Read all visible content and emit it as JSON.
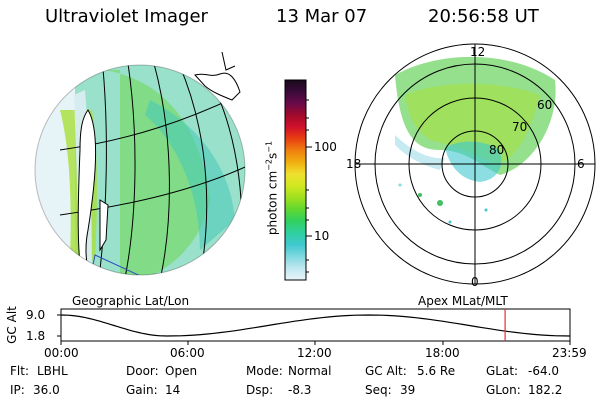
{
  "header": {
    "title": "Ultraviolet Imager",
    "date": "13 Mar 07",
    "time": "20:56:58 UT"
  },
  "colorbar": {
    "unit_label": "photon cm",
    "unit_sup1": "−2",
    "unit_mid": "s",
    "unit_sup2": "−1",
    "ticks": [
      "100",
      "10"
    ],
    "colors": [
      "#1a0a1a",
      "#3a0a3a",
      "#6a0a4a",
      "#a00a2a",
      "#d0102a",
      "#e84010",
      "#f08010",
      "#f0b010",
      "#f0e030",
      "#d0e820",
      "#a0e020",
      "#60d830",
      "#30d060",
      "#30d0a0",
      "#40c8d0",
      "#80d8e0",
      "#c0e8f0",
      "#e8f4f8"
    ],
    "colors_label": "ramp-top-to-bottom"
  },
  "left_map": {
    "caption": "Geographic Lat/Lon"
  },
  "right_map": {
    "caption": "Apex MLat/MLT",
    "mlt_labels": {
      "top": "12",
      "left": "18",
      "right": "6",
      "bottom": "0"
    },
    "lat_labels": [
      "60",
      "70",
      "80"
    ]
  },
  "timeline": {
    "axis_label": "GC Alt",
    "y_ticks": [
      "9.0",
      "1.8"
    ],
    "x_ticks": [
      "00:00",
      "06:00",
      "12:00",
      "18:00",
      "23:59"
    ],
    "marker_time": "20:56",
    "marker_color": "#e03030",
    "alt_curve_hours": [
      0,
      5.0,
      14.5,
      23.99
    ],
    "alt_curve_values": [
      9.0,
      1.8,
      9.0,
      1.8
    ]
  },
  "status": {
    "filter_label": "Flt:",
    "filter_value": "LBHL",
    "door_label": "Door:",
    "door_value": "Open",
    "mode_label": "Mode:",
    "mode_value": "Normal",
    "gcalt_label": "GC Alt:",
    "gcalt_value": "5.6 Re",
    "glat_label": "GLat:",
    "glat_value": "-64.0",
    "ip_label": "IP:",
    "ip_value": "36.0",
    "gain_label": "Gain:",
    "gain_value": "14",
    "dsp_label": "Dsp:",
    "dsp_value": "-8.3",
    "seq_label": "Seq:",
    "seq_value": "39",
    "glon_label": "GLon:",
    "glon_value": "182.2"
  }
}
